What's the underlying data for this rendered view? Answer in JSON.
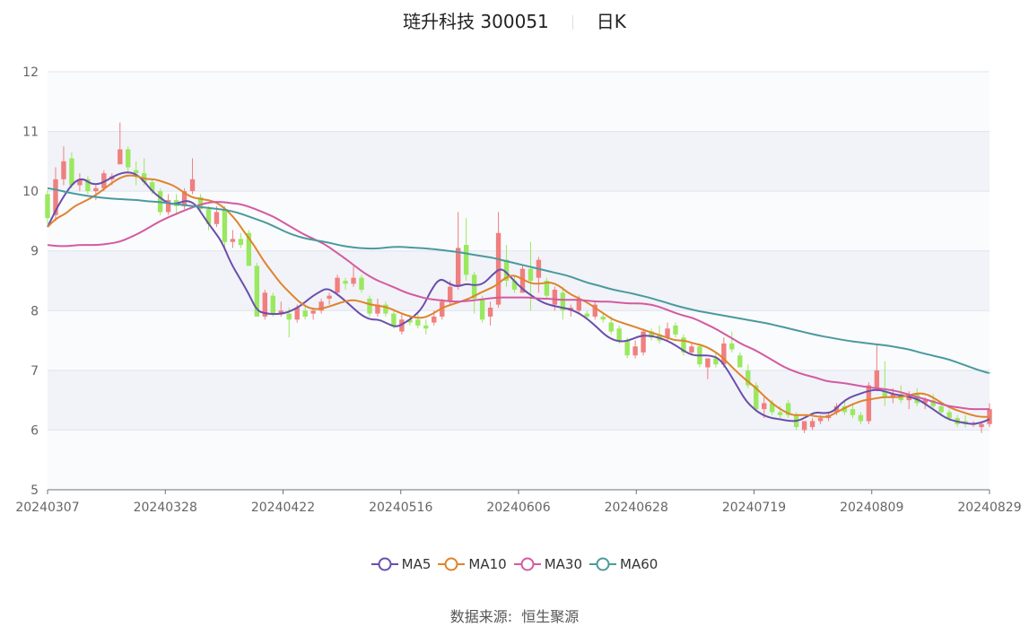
{
  "header": {
    "stock": "琏升科技 300051",
    "period": "日K"
  },
  "source": {
    "label": "数据来源:",
    "value": "恒生聚源"
  },
  "chart_data": {
    "type": "candlestick",
    "title": "琏升科技 300051",
    "ylim": [
      5,
      12
    ],
    "yticks": [
      5,
      6,
      7,
      8,
      9,
      10,
      11,
      12
    ],
    "xtick_labels": [
      "20240307",
      "20240328",
      "20240422",
      "20240516",
      "20240606",
      "20240628",
      "20240719",
      "20240809",
      "20240829"
    ],
    "up_color": "#f07f7f",
    "down_color": "#9ae85f",
    "candles_ohlc": [
      [
        9.95,
        10.02,
        9.45,
        9.55
      ],
      [
        9.6,
        10.4,
        9.5,
        10.2
      ],
      [
        10.2,
        10.75,
        10.1,
        10.5
      ],
      [
        10.55,
        10.65,
        10.05,
        10.1
      ],
      [
        10.1,
        10.3,
        10.0,
        10.2
      ],
      [
        10.2,
        10.25,
        9.95,
        10.0
      ],
      [
        10.0,
        10.1,
        9.85,
        10.05
      ],
      [
        10.05,
        10.35,
        10.0,
        10.3
      ],
      [
        10.2,
        10.3,
        10.1,
        10.25
      ],
      [
        10.45,
        11.15,
        10.45,
        10.7
      ],
      [
        10.7,
        10.75,
        10.3,
        10.4
      ],
      [
        10.35,
        10.5,
        10.1,
        10.3
      ],
      [
        10.3,
        10.55,
        10.1,
        10.15
      ],
      [
        10.15,
        10.2,
        9.95,
        10.0
      ],
      [
        10.0,
        10.05,
        9.6,
        9.65
      ],
      [
        9.65,
        9.95,
        9.6,
        9.85
      ],
      [
        9.85,
        9.95,
        9.6,
        9.75
      ],
      [
        9.75,
        10.05,
        9.7,
        10.0
      ],
      [
        10.0,
        10.55,
        9.95,
        10.2
      ],
      [
        9.9,
        9.95,
        9.65,
        9.7
      ],
      [
        9.7,
        9.75,
        9.35,
        9.45
      ],
      [
        9.45,
        9.75,
        9.4,
        9.65
      ],
      [
        9.7,
        9.75,
        9.05,
        9.15
      ],
      [
        9.15,
        9.35,
        9.05,
        9.2
      ],
      [
        9.2,
        9.3,
        9.05,
        9.1
      ],
      [
        9.3,
        9.35,
        8.75,
        8.75
      ],
      [
        8.75,
        8.8,
        7.9,
        7.9
      ],
      [
        7.9,
        8.35,
        7.85,
        8.3
      ],
      [
        8.25,
        8.3,
        7.9,
        7.95
      ],
      [
        7.95,
        8.15,
        7.9,
        8.0
      ],
      [
        7.95,
        8.05,
        7.55,
        7.85
      ],
      [
        7.85,
        8.1,
        7.8,
        8.05
      ],
      [
        8.0,
        8.1,
        7.85,
        7.9
      ],
      [
        7.95,
        8.05,
        7.85,
        8.0
      ],
      [
        8.0,
        8.2,
        7.95,
        8.15
      ],
      [
        8.2,
        8.3,
        8.1,
        8.25
      ],
      [
        8.3,
        8.6,
        8.25,
        8.55
      ],
      [
        8.5,
        8.55,
        8.35,
        8.45
      ],
      [
        8.45,
        8.75,
        8.4,
        8.55
      ],
      [
        8.55,
        8.6,
        8.3,
        8.35
      ],
      [
        8.2,
        8.25,
        7.9,
        7.95
      ],
      [
        7.95,
        8.2,
        7.9,
        8.1
      ],
      [
        8.1,
        8.15,
        7.9,
        7.95
      ],
      [
        7.95,
        8.0,
        7.7,
        7.75
      ],
      [
        7.65,
        7.95,
        7.6,
        7.85
      ],
      [
        7.85,
        7.9,
        7.75,
        7.8
      ],
      [
        7.85,
        7.95,
        7.7,
        7.75
      ],
      [
        7.75,
        7.85,
        7.6,
        7.7
      ],
      [
        7.8,
        8.0,
        7.75,
        7.9
      ],
      [
        7.9,
        8.2,
        7.85,
        8.15
      ],
      [
        8.15,
        8.5,
        8.1,
        8.4
      ],
      [
        8.4,
        9.65,
        8.35,
        9.05
      ],
      [
        9.1,
        9.55,
        8.5,
        8.6
      ],
      [
        8.6,
        8.65,
        7.95,
        8.2
      ],
      [
        8.2,
        8.25,
        7.8,
        7.85
      ],
      [
        7.9,
        8.15,
        7.75,
        8.05
      ],
      [
        8.1,
        9.65,
        8.05,
        9.3
      ],
      [
        8.85,
        9.1,
        8.4,
        8.5
      ],
      [
        8.5,
        8.6,
        8.3,
        8.35
      ],
      [
        8.3,
        8.75,
        8.3,
        8.7
      ],
      [
        8.7,
        9.15,
        8.0,
        8.5
      ],
      [
        8.55,
        8.9,
        8.3,
        8.85
      ],
      [
        8.5,
        8.55,
        8.2,
        8.25
      ],
      [
        8.1,
        8.4,
        8.0,
        8.35
      ],
      [
        8.3,
        8.4,
        7.85,
        8.0
      ],
      [
        8.0,
        8.1,
        7.9,
        8.05
      ],
      [
        8.0,
        8.25,
        7.95,
        8.2
      ],
      [
        7.95,
        8.0,
        7.85,
        7.9
      ],
      [
        7.9,
        8.15,
        7.85,
        8.1
      ],
      [
        7.9,
        7.95,
        7.8,
        7.85
      ],
      [
        7.8,
        7.9,
        7.6,
        7.65
      ],
      [
        7.7,
        7.75,
        7.45,
        7.5
      ],
      [
        7.5,
        7.55,
        7.2,
        7.25
      ],
      [
        7.25,
        7.5,
        7.2,
        7.4
      ],
      [
        7.3,
        7.7,
        7.25,
        7.65
      ],
      [
        7.65,
        7.7,
        7.5,
        7.55
      ],
      [
        7.6,
        7.75,
        7.45,
        7.5
      ],
      [
        7.55,
        7.8,
        7.5,
        7.7
      ],
      [
        7.75,
        7.8,
        7.55,
        7.6
      ],
      [
        7.55,
        7.6,
        7.25,
        7.3
      ],
      [
        7.3,
        7.45,
        7.25,
        7.4
      ],
      [
        7.4,
        7.45,
        7.05,
        7.1
      ],
      [
        7.05,
        7.1,
        6.85,
        7.2
      ],
      [
        7.2,
        7.3,
        7.05,
        7.1
      ],
      [
        7.1,
        7.55,
        7.05,
        7.45
      ],
      [
        7.45,
        7.65,
        7.3,
        7.35
      ],
      [
        7.25,
        7.3,
        7.05,
        7.05
      ],
      [
        7.0,
        7.1,
        6.7,
        6.75
      ],
      [
        6.75,
        6.8,
        6.3,
        6.35
      ],
      [
        6.35,
        6.55,
        6.2,
        6.45
      ],
      [
        6.45,
        6.5,
        6.25,
        6.3
      ],
      [
        6.3,
        6.4,
        6.2,
        6.25
      ],
      [
        6.45,
        6.5,
        6.2,
        6.25
      ],
      [
        6.25,
        6.3,
        6.0,
        6.05
      ],
      [
        6.0,
        6.05,
        5.95,
        6.15
      ],
      [
        6.05,
        6.2,
        6.0,
        6.15
      ],
      [
        6.15,
        6.25,
        6.1,
        6.2
      ],
      [
        6.2,
        6.3,
        6.15,
        6.25
      ],
      [
        6.3,
        6.45,
        6.25,
        6.4
      ],
      [
        6.4,
        6.5,
        6.25,
        6.3
      ],
      [
        6.35,
        6.45,
        6.2,
        6.25
      ],
      [
        6.25,
        6.3,
        6.1,
        6.15
      ],
      [
        6.15,
        6.8,
        6.1,
        6.75
      ],
      [
        6.7,
        7.45,
        6.65,
        7.0
      ],
      [
        6.65,
        7.15,
        6.4,
        6.55
      ],
      [
        6.55,
        6.7,
        6.45,
        6.6
      ],
      [
        6.6,
        6.75,
        6.45,
        6.5
      ],
      [
        6.5,
        6.65,
        6.35,
        6.6
      ],
      [
        6.6,
        6.7,
        6.4,
        6.45
      ],
      [
        6.45,
        6.55,
        6.35,
        6.5
      ],
      [
        6.5,
        6.6,
        6.35,
        6.4
      ],
      [
        6.4,
        6.45,
        6.25,
        6.3
      ],
      [
        6.3,
        6.35,
        6.15,
        6.2
      ],
      [
        6.2,
        6.25,
        6.05,
        6.1
      ],
      [
        6.15,
        6.25,
        6.05,
        6.1
      ],
      [
        6.1,
        6.15,
        6.05,
        6.1
      ],
      [
        6.05,
        6.15,
        5.95,
        6.1
      ],
      [
        6.1,
        6.45,
        6.05,
        6.35
      ]
    ],
    "series": [
      {
        "name": "MA5",
        "color": "#6a4eab",
        "values": [
          9.4,
          9.7,
          9.95,
          10.15,
          10.22,
          10.12,
          10.12,
          10.2,
          10.28,
          10.32,
          10.3,
          10.18,
          10.0,
          9.88,
          9.78,
          9.8,
          9.85,
          9.78,
          9.55,
          9.35,
          9.15,
          8.8,
          8.55,
          8.3,
          8.0,
          7.95,
          7.94,
          7.95,
          8.0,
          8.08,
          8.2,
          8.3,
          8.38,
          8.3,
          8.18,
          8.05,
          7.92,
          7.85,
          7.85,
          7.78,
          7.72,
          7.8,
          7.9,
          8.05,
          8.35,
          8.55,
          8.45,
          8.4,
          8.45,
          8.42,
          8.45,
          8.6,
          8.72,
          8.58,
          8.42,
          8.3,
          8.2,
          8.12,
          8.08,
          8.05,
          8.02,
          7.95,
          7.85,
          7.72,
          7.58,
          7.5,
          7.48,
          7.52,
          7.58,
          7.58,
          7.55,
          7.5,
          7.42,
          7.32,
          7.25,
          7.25,
          7.25,
          7.2,
          7.0,
          6.75,
          6.5,
          6.35,
          6.25,
          6.2,
          6.18,
          6.15,
          6.15,
          6.22,
          6.3,
          6.28,
          6.3,
          6.45,
          6.55,
          6.6,
          6.65,
          6.68,
          6.65,
          6.6,
          6.58,
          6.55,
          6.5,
          6.4,
          6.3,
          6.2,
          6.15,
          6.12,
          6.1,
          6.12,
          6.18
        ]
      },
      {
        "name": "MA10",
        "color": "#e0832a",
        "values": [
          9.4,
          9.55,
          9.62,
          9.75,
          9.82,
          9.9,
          10.0,
          10.12,
          10.22,
          10.27,
          10.25,
          10.2,
          10.2,
          10.15,
          10.1,
          10.0,
          9.9,
          9.87,
          9.85,
          9.8,
          9.68,
          9.52,
          9.3,
          9.1,
          8.85,
          8.65,
          8.45,
          8.3,
          8.15,
          8.05,
          8.02,
          8.05,
          8.1,
          8.15,
          8.18,
          8.15,
          8.1,
          8.08,
          8.05,
          7.98,
          7.92,
          7.88,
          7.88,
          7.95,
          8.05,
          8.1,
          8.15,
          8.2,
          8.28,
          8.35,
          8.42,
          8.55,
          8.6,
          8.52,
          8.45,
          8.45,
          8.48,
          8.42,
          8.3,
          8.22,
          8.15,
          8.05,
          7.95,
          7.85,
          7.8,
          7.75,
          7.7,
          7.65,
          7.6,
          7.55,
          7.5,
          7.5,
          7.45,
          7.42,
          7.35,
          7.25,
          7.1,
          6.95,
          6.82,
          6.7,
          6.55,
          6.42,
          6.32,
          6.25,
          6.25,
          6.25,
          6.22,
          6.22,
          6.3,
          6.38,
          6.45,
          6.5,
          6.52,
          6.55,
          6.55,
          6.55,
          6.58,
          6.62,
          6.6,
          6.52,
          6.42,
          6.35,
          6.3,
          6.25,
          6.22,
          6.22
        ]
      },
      {
        "name": "MA30",
        "color": "#d45aa0",
        "values": [
          9.1,
          9.08,
          9.08,
          9.1,
          9.1,
          9.1,
          9.12,
          9.15,
          9.22,
          9.3,
          9.4,
          9.5,
          9.58,
          9.65,
          9.72,
          9.78,
          9.82,
          9.82,
          9.8,
          9.78,
          9.72,
          9.65,
          9.58,
          9.48,
          9.38,
          9.28,
          9.2,
          9.12,
          9.0,
          8.88,
          8.75,
          8.62,
          8.52,
          8.45,
          8.38,
          8.3,
          8.25,
          8.2,
          8.18,
          8.16,
          8.15,
          8.16,
          8.18,
          8.2,
          8.22,
          8.22,
          8.22,
          8.22,
          8.2,
          8.2,
          8.18,
          8.18,
          8.18,
          8.16,
          8.15,
          8.15,
          8.13,
          8.12,
          8.12,
          8.1,
          8.05,
          7.98,
          7.92,
          7.88,
          7.8,
          7.72,
          7.62,
          7.52,
          7.42,
          7.35,
          7.25,
          7.15,
          7.05,
          6.98,
          6.92,
          6.88,
          6.82,
          6.8,
          6.78,
          6.75,
          6.72,
          6.7,
          6.68,
          6.65,
          6.6,
          6.55,
          6.5,
          6.45,
          6.4,
          6.38,
          6.35,
          6.35,
          6.35
        ]
      },
      {
        "name": "MA60",
        "color": "#4a9a9e",
        "values": [
          10.05,
          10.02,
          9.98,
          9.95,
          9.92,
          9.9,
          9.88,
          9.87,
          9.86,
          9.85,
          9.83,
          9.82,
          9.8,
          9.78,
          9.76,
          9.74,
          9.72,
          9.7,
          9.68,
          9.64,
          9.58,
          9.52,
          9.46,
          9.38,
          9.3,
          9.24,
          9.2,
          9.17,
          9.14,
          9.1,
          9.07,
          9.05,
          9.04,
          9.04,
          9.06,
          9.07,
          9.06,
          9.05,
          9.04,
          9.02,
          9.0,
          8.98,
          8.95,
          8.92,
          8.9,
          8.86,
          8.82,
          8.78,
          8.74,
          8.7,
          8.66,
          8.62,
          8.58,
          8.52,
          8.46,
          8.42,
          8.37,
          8.33,
          8.3,
          8.26,
          8.22,
          8.17,
          8.12,
          8.07,
          8.03,
          7.99,
          7.96,
          7.93,
          7.9,
          7.87,
          7.84,
          7.81,
          7.78,
          7.74,
          7.7,
          7.66,
          7.62,
          7.58,
          7.55,
          7.52,
          7.49,
          7.47,
          7.45,
          7.43,
          7.41,
          7.38,
          7.35,
          7.3,
          7.26,
          7.22,
          7.18,
          7.12,
          7.06,
          7.0,
          6.95
        ]
      }
    ]
  }
}
